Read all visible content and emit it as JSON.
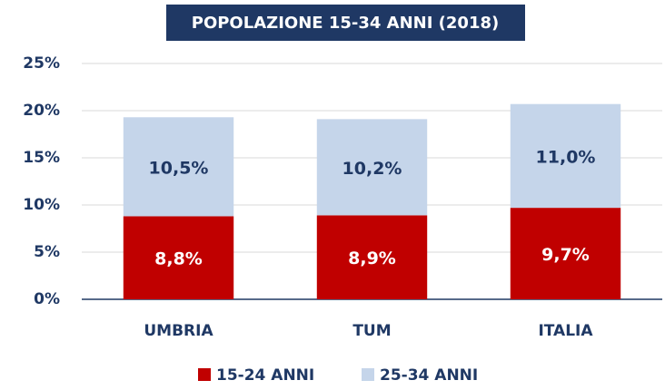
{
  "chart_data": {
    "type": "stacked_bar",
    "title": "POPOLAZIONE 15-34 ANNI (2018)",
    "categories": [
      "UMBRIA",
      "TUM",
      "ITALIA"
    ],
    "series": [
      {
        "name": "15-24 ANNI",
        "color": "#c00000",
        "label_color": "#ffffff",
        "values": [
          8.8,
          8.9,
          9.7
        ],
        "value_labels": [
          "8,8%",
          "8,9%",
          "9,7%"
        ]
      },
      {
        "name": "25-34 ANNI",
        "color": "#c5d5ea",
        "label_color": "#1f3864",
        "values": [
          10.5,
          10.2,
          11.0
        ],
        "value_labels": [
          "10,5%",
          "10,2%",
          "11,0%"
        ]
      }
    ],
    "ylim": [
      0,
      25
    ],
    "yticks": [
      {
        "value": 0,
        "label": "0%"
      },
      {
        "value": 5,
        "label": "5%"
      },
      {
        "value": 10,
        "label": "10%"
      },
      {
        "value": 15,
        "label": "15%"
      },
      {
        "value": 20,
        "label": "20%"
      },
      {
        "value": 25,
        "label": "25%"
      }
    ],
    "grid": true,
    "legend": "bottom"
  }
}
